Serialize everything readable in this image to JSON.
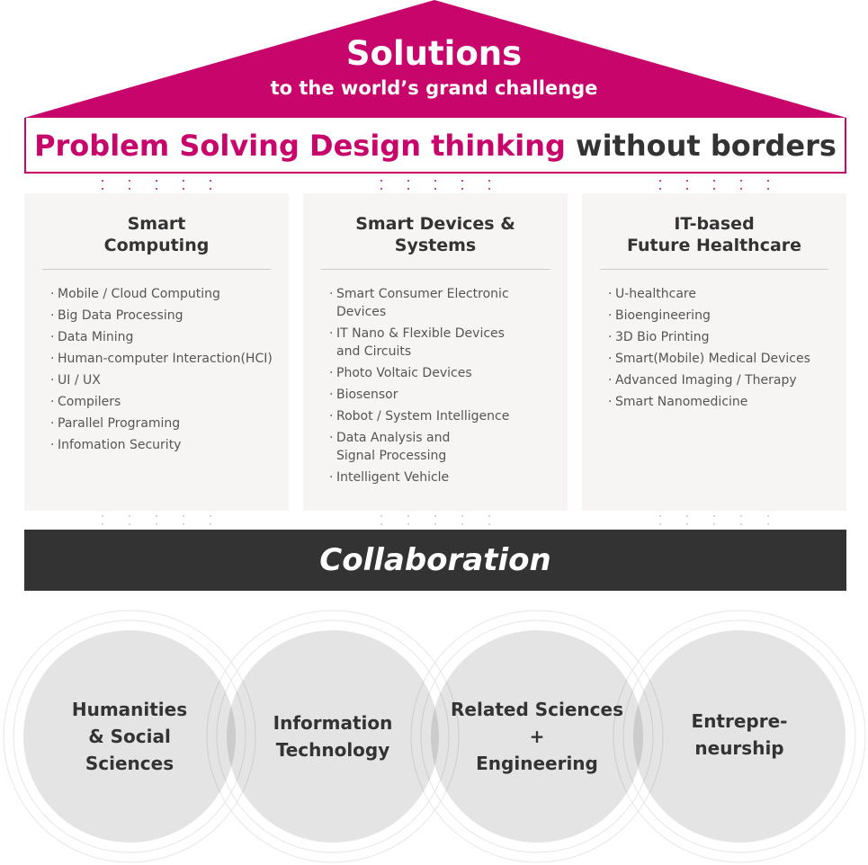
{
  "header": {
    "title": "Solutions",
    "subtitle": "to the world’s grand challenge"
  },
  "banner": {
    "accent_text": "Problem Solving Design thinking",
    "rest_text": "without borders"
  },
  "panels": [
    {
      "title_line1": "Smart",
      "title_line2": "Computing",
      "items": [
        "Mobile / Cloud Computing",
        "Big Data Processing",
        "Data Mining",
        "Human-computer Interaction(HCI)",
        "UI / UX",
        "Compilers",
        "Parallel Programing",
        "Infomation Security"
      ]
    },
    {
      "title_line1": "Smart Devices &",
      "title_line2": "Systems",
      "items": [
        "Smart Consumer Electronic Devices",
        "IT Nano & Flexible Devices and Circuits",
        "Photo Voltaic Devices",
        "Biosensor",
        "Robot / System Intelligence",
        "Data Analysis and Signal Processing",
        "Intelligent Vehicle"
      ]
    },
    {
      "title_line1": "IT-based",
      "title_line2": "Future Healthcare",
      "items": [
        "U-healthcare",
        "Bioengineering",
        "3D Bio Printing",
        "Smart(Mobile) Medical Devices",
        "Advanced Imaging / Therapy",
        "Smart Nanomedicine"
      ]
    }
  ],
  "collaboration": {
    "label": "Collaboration"
  },
  "circles": [
    {
      "lines": [
        "Humanities",
        "& Social",
        "Sciences"
      ]
    },
    {
      "lines": [
        "Information",
        "Technology"
      ]
    },
    {
      "lines": [
        "Related Sciences",
        "+",
        "Engineering"
      ]
    },
    {
      "lines": [
        "Entrepre-",
        "neurship"
      ]
    }
  ],
  "colors": {
    "accent": "#c8056a",
    "dark": "#333333",
    "panel_bg": "#f6f5f3",
    "circle_fill": "#e4e4e4",
    "circle_ring": "#e6e6e6"
  }
}
